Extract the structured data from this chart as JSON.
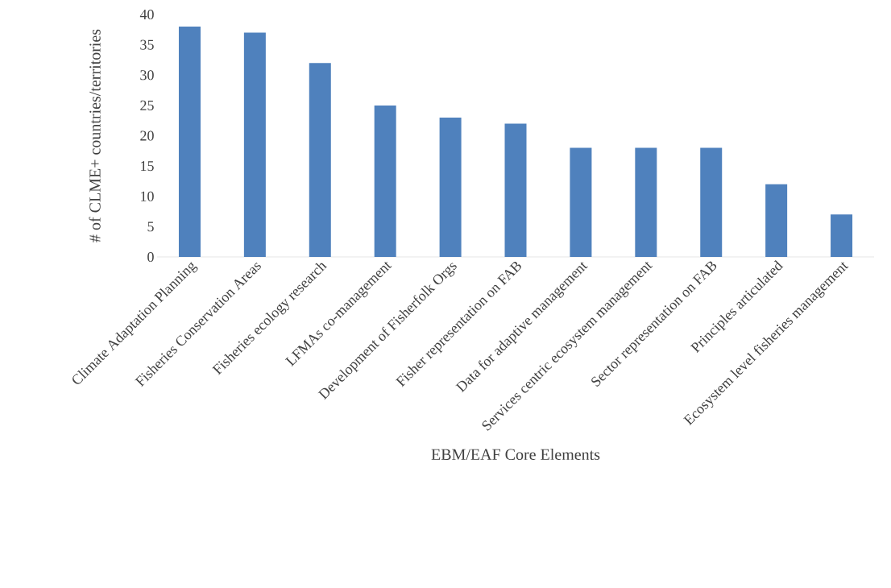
{
  "chart_data": {
    "type": "bar",
    "xlabel": "EBM/EAF Core Elements",
    "ylabel": "# of CLME+ countries/territories",
    "categories": [
      "Climate Adaptation Planning",
      "Fisheries Conservation Areas",
      "Fisheries ecology research",
      "LFMAs co-management",
      "Development of Fisherfolk Orgs",
      "Fisher representation on FAB",
      "Data for adaptive management",
      "Services centric ecosystem management",
      "Sector representation on FAB",
      "Principles articulated",
      "Ecosystem level fisheries management"
    ],
    "values": [
      38,
      37,
      32,
      25,
      23,
      22,
      18,
      18,
      18,
      12,
      7
    ],
    "color": "#4f81bd",
    "ylim": [
      0,
      40
    ],
    "yticks": [
      0,
      5,
      10,
      15,
      20,
      25,
      30,
      35,
      40
    ]
  }
}
